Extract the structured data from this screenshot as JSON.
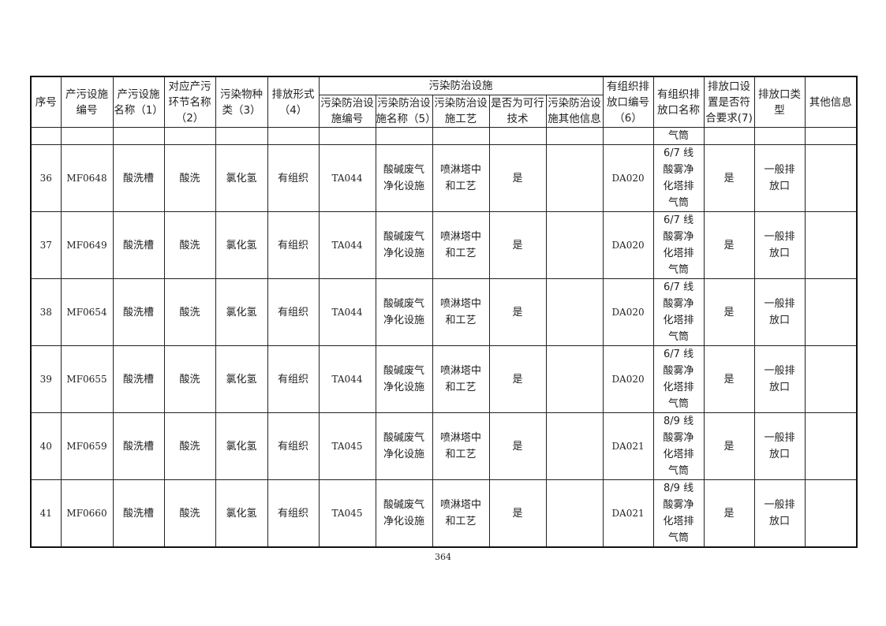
{
  "headers": {
    "seq": "序号",
    "facility_id": "产污设施编号",
    "facility_name": "产污设施名称（1）",
    "process_name": "对应产污环节名称（2）",
    "pollutant": "污染物种类（3）",
    "emission_form": "排放形式（4）",
    "control_group": "污染防治设施",
    "control_id": "污染防治设施编号",
    "control_name": "污染防治设施名称（5）",
    "control_process": "污染防治设施工艺",
    "feasible": "是否为可行技术",
    "control_other": "污染防治设施其他信息",
    "outlet_id": "有组织排放口编号（6）",
    "outlet_name": "有组织排放口名称",
    "outlet_compliant": "排放口设置是否符合要求(7)",
    "outlet_type": "排放口类型",
    "other": "其他信息"
  },
  "continuation_row": {
    "outlet_name": "气筒"
  },
  "rows": [
    {
      "seq": "36",
      "facility_id": "MF0648",
      "facility_name": "酸洗槽",
      "process_name": "酸洗",
      "pollutant": "氯化氢",
      "emission_form": "有组织",
      "control_id": "TA044",
      "control_name": "酸碱废气净化设施",
      "control_process": "喷淋塔中和工艺",
      "feasible": "是",
      "control_other": "",
      "outlet_id": "DA020",
      "outlet_name": "6/7 线酸雾净化塔排气筒",
      "outlet_compliant": "是",
      "outlet_type": "一般排放口",
      "other": ""
    },
    {
      "seq": "37",
      "facility_id": "MF0649",
      "facility_name": "酸洗槽",
      "process_name": "酸洗",
      "pollutant": "氯化氢",
      "emission_form": "有组织",
      "control_id": "TA044",
      "control_name": "酸碱废气净化设施",
      "control_process": "喷淋塔中和工艺",
      "feasible": "是",
      "control_other": "",
      "outlet_id": "DA020",
      "outlet_name": "6/7 线酸雾净化塔排气筒",
      "outlet_compliant": "是",
      "outlet_type": "一般排放口",
      "other": ""
    },
    {
      "seq": "38",
      "facility_id": "MF0654",
      "facility_name": "酸洗槽",
      "process_name": "酸洗",
      "pollutant": "氯化氢",
      "emission_form": "有组织",
      "control_id": "TA044",
      "control_name": "酸碱废气净化设施",
      "control_process": "喷淋塔中和工艺",
      "feasible": "是",
      "control_other": "",
      "outlet_id": "DA020",
      "outlet_name": "6/7 线酸雾净化塔排气筒",
      "outlet_compliant": "是",
      "outlet_type": "一般排放口",
      "other": ""
    },
    {
      "seq": "39",
      "facility_id": "MF0655",
      "facility_name": "酸洗槽",
      "process_name": "酸洗",
      "pollutant": "氯化氢",
      "emission_form": "有组织",
      "control_id": "TA044",
      "control_name": "酸碱废气净化设施",
      "control_process": "喷淋塔中和工艺",
      "feasible": "是",
      "control_other": "",
      "outlet_id": "DA020",
      "outlet_name": "6/7 线酸雾净化塔排气筒",
      "outlet_compliant": "是",
      "outlet_type": "一般排放口",
      "other": ""
    },
    {
      "seq": "40",
      "facility_id": "MF0659",
      "facility_name": "酸洗槽",
      "process_name": "酸洗",
      "pollutant": "氯化氢",
      "emission_form": "有组织",
      "control_id": "TA045",
      "control_name": "酸碱废气净化设施",
      "control_process": "喷淋塔中和工艺",
      "feasible": "是",
      "control_other": "",
      "outlet_id": "DA021",
      "outlet_name": "8/9 线酸雾净化塔排气筒",
      "outlet_compliant": "是",
      "outlet_type": "一般排放口",
      "other": ""
    },
    {
      "seq": "41",
      "facility_id": "MF0660",
      "facility_name": "酸洗槽",
      "process_name": "酸洗",
      "pollutant": "氯化氢",
      "emission_form": "有组织",
      "control_id": "TA045",
      "control_name": "酸碱废气净化设施",
      "control_process": "喷淋塔中和工艺",
      "feasible": "是",
      "control_other": "",
      "outlet_id": "DA021",
      "outlet_name": "8/9 线酸雾净化塔排气筒",
      "outlet_compliant": "是",
      "outlet_type": "一般排放口",
      "other": ""
    }
  ],
  "page_number": "364"
}
